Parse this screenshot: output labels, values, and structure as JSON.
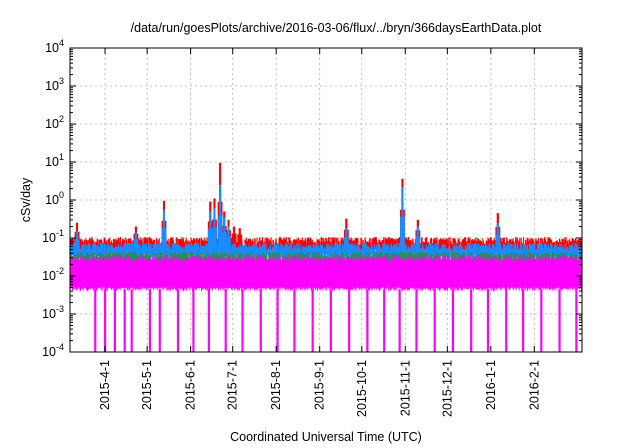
{
  "chart_data": {
    "type": "line",
    "title": "/data/run/goesPlots/archive/2016-03-06/flux/../bryn/366daysEarthData.plot",
    "xlabel": "Coordinated Universal Time (UTC)",
    "ylabel": "cSv/day",
    "y_scale": "log",
    "ylim": [
      0.0001,
      10000
    ],
    "xlim": [
      "2015-03-07",
      "2016-03-06"
    ],
    "grid": true,
    "y_ticks": [
      {
        "value": 0.0001,
        "base": "10",
        "exp": "-4"
      },
      {
        "value": 0.001,
        "base": "10",
        "exp": "-3"
      },
      {
        "value": 0.01,
        "base": "10",
        "exp": "-2"
      },
      {
        "value": 0.1,
        "base": "10",
        "exp": "-1"
      },
      {
        "value": 1,
        "base": "10",
        "exp": "0"
      },
      {
        "value": 10,
        "base": "10",
        "exp": "1"
      },
      {
        "value": 100,
        "base": "10",
        "exp": "2"
      },
      {
        "value": 1000,
        "base": "10",
        "exp": "3"
      },
      {
        "value": 10000,
        "base": "10",
        "exp": "4"
      }
    ],
    "x_ticks": [
      {
        "date": "2015-04-01",
        "label": "2015-4-1"
      },
      {
        "date": "2015-05-01",
        "label": "2015-5-1"
      },
      {
        "date": "2015-06-01",
        "label": "2015-6-1"
      },
      {
        "date": "2015-07-01",
        "label": "2015-7-1"
      },
      {
        "date": "2015-08-01",
        "label": "2015-8-1"
      },
      {
        "date": "2015-09-01",
        "label": "2015-9-1"
      },
      {
        "date": "2015-10-01",
        "label": "2015-10-1"
      },
      {
        "date": "2015-11-01",
        "label": "2015-11-1"
      },
      {
        "date": "2015-12-01",
        "label": "2015-12-1"
      },
      {
        "date": "2016-01-01",
        "label": "2016-1-1"
      },
      {
        "date": "2016-02-01",
        "label": "2016-2-1"
      }
    ],
    "series": [
      {
        "color": "#ff0000",
        "baseline": 0.085,
        "peaks": [
          {
            "date": "2015-03-12",
            "value": 0.25
          },
          {
            "date": "2015-04-23",
            "value": 0.2
          },
          {
            "date": "2015-05-13",
            "value": 0.95
          },
          {
            "date": "2015-06-15",
            "value": 0.9
          },
          {
            "date": "2015-06-18",
            "value": 1.1
          },
          {
            "date": "2015-06-22",
            "value": 9.5
          },
          {
            "date": "2015-06-25",
            "value": 0.5
          },
          {
            "date": "2015-06-28",
            "value": 0.3
          },
          {
            "date": "2015-07-02",
            "value": 0.2
          },
          {
            "date": "2015-07-06",
            "value": 0.18
          },
          {
            "date": "2015-09-20",
            "value": 0.32
          },
          {
            "date": "2015-10-30",
            "value": 3.6
          },
          {
            "date": "2015-11-10",
            "value": 0.3
          },
          {
            "date": "2016-01-06",
            "value": 0.45
          }
        ]
      },
      {
        "color": "#1a8cff",
        "baseline": 0.06,
        "peaks": [
          {
            "date": "2015-03-12",
            "value": 0.15
          },
          {
            "date": "2015-04-23",
            "value": 0.14
          },
          {
            "date": "2015-05-13",
            "value": 0.55
          },
          {
            "date": "2015-06-15",
            "value": 0.5
          },
          {
            "date": "2015-06-18",
            "value": 0.6
          },
          {
            "date": "2015-06-22",
            "value": 2.5
          },
          {
            "date": "2015-06-25",
            "value": 0.35
          },
          {
            "date": "2015-06-28",
            "value": 0.2
          },
          {
            "date": "2015-09-20",
            "value": 0.18
          },
          {
            "date": "2015-10-30",
            "value": 2.2
          },
          {
            "date": "2015-11-10",
            "value": 0.2
          },
          {
            "date": "2016-01-06",
            "value": 0.25
          }
        ]
      },
      {
        "color": "#2e8b57",
        "baseline": 0.035,
        "peaks": []
      },
      {
        "color": "#ff00ff",
        "baseline": 0.028,
        "floor": 0.0045,
        "dropouts": [
          "2015-03-25",
          "2015-04-01",
          "2015-04-08",
          "2015-04-15",
          "2015-04-20",
          "2015-05-03",
          "2015-05-10",
          "2015-05-23",
          "2015-06-03",
          "2015-06-14",
          "2015-06-26",
          "2015-07-08",
          "2015-07-21",
          "2015-08-02",
          "2015-08-14",
          "2015-08-27",
          "2015-09-09",
          "2015-09-22",
          "2015-10-05",
          "2015-10-17",
          "2015-10-28",
          "2015-11-09",
          "2015-11-22",
          "2015-12-05",
          "2015-12-18",
          "2015-12-30",
          "2016-01-12",
          "2016-01-24",
          "2016-02-06",
          "2016-02-19",
          "2016-03-02"
        ]
      }
    ]
  }
}
